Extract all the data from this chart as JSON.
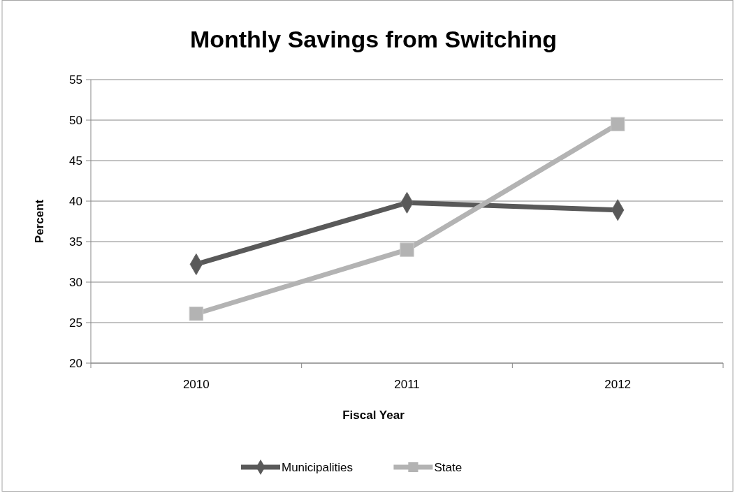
{
  "chart_data": {
    "type": "line",
    "title": "Monthly Savings from Switching",
    "xlabel": "Fiscal Year",
    "ylabel": "Percent",
    "categories": [
      "2010",
      "2011",
      "2012"
    ],
    "series": [
      {
        "name": "Municipalities",
        "color": "#595959",
        "marker": "diamond",
        "values": [
          32.2,
          39.8,
          38.9
        ]
      },
      {
        "name": "State",
        "color": "#b3b3b3",
        "marker": "square",
        "values": [
          26.1,
          34.0,
          49.5
        ]
      }
    ],
    "ylim": [
      20,
      55
    ],
    "yticks": [
      20,
      25,
      30,
      35,
      40,
      45,
      50,
      55
    ],
    "grid": "y",
    "legend": "bottom",
    "line_style": "solid"
  }
}
